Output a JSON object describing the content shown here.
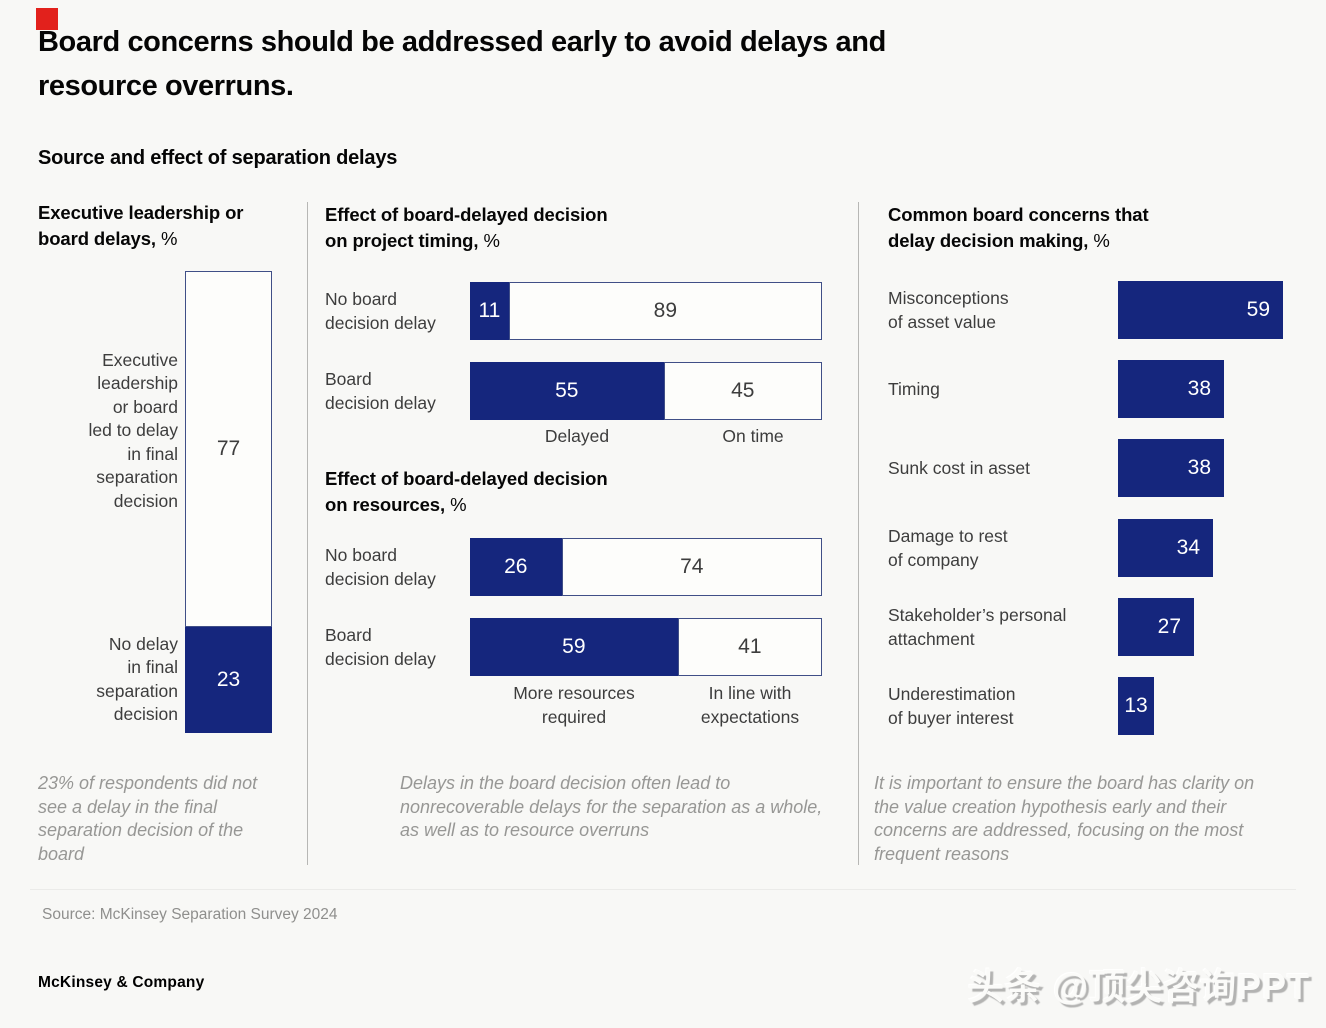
{
  "header": {
    "title": "Board concerns should be addressed early to avoid delays and\nresource overruns.",
    "subtitle": "Source and effect of separation delays"
  },
  "footer": {
    "source": "Source: McKinsey Separation Survey 2024",
    "brand": "McKinsey & Company",
    "watermark": "头条 @顶尖咨询PPT"
  },
  "colors": {
    "accent_blue": "#15267D",
    "marker_red": "#E2211C",
    "background": "#F8F8F6"
  },
  "chart_data": [
    {
      "id": "executive-delays",
      "type": "bar",
      "variant": "stacked-vertical",
      "title": "Executive leadership or board delays,",
      "unit": "%",
      "ylim": [
        0,
        100
      ],
      "segments": [
        {
          "label": "Executive\nleadership\nor board\nled to delay\nin final\nseparation\ndecision",
          "value": 77,
          "fill": "outline"
        },
        {
          "label": "No delay\nin final\nseparation\ndecision",
          "value": 23,
          "fill": "solid"
        }
      ],
      "footnote": "23% of respondents did not see a delay in the final separation decision of the board"
    },
    {
      "id": "timing-effect",
      "type": "bar",
      "variant": "stacked-horizontal-100",
      "title": "Effect of board-delayed decision on project timing,",
      "unit": "%",
      "rows": [
        {
          "label": "No board\ndecision delay",
          "values": [
            11,
            89
          ]
        },
        {
          "label": "Board\ndecision delay",
          "values": [
            55,
            45
          ]
        }
      ],
      "legend": [
        "Delayed",
        "On time"
      ]
    },
    {
      "id": "resources-effect",
      "type": "bar",
      "variant": "stacked-horizontal-100",
      "title": "Effect of board-delayed decision on resources,",
      "unit": "%",
      "rows": [
        {
          "label": "No board\ndecision delay",
          "values": [
            26,
            74
          ]
        },
        {
          "label": "Board\ndecision delay",
          "values": [
            59,
            41
          ]
        }
      ],
      "legend": [
        "More resources\nrequired",
        "In line with\nexpectations"
      ],
      "footnote": "Delays in the board decision often lead to nonrecoverable delays for the separation as a whole, as well as to resource overruns"
    },
    {
      "id": "board-concerns",
      "type": "bar",
      "variant": "horizontal",
      "title": "Common board concerns that delay decision making,",
      "unit": "%",
      "xlim": [
        0,
        60
      ],
      "categories": [
        "Misconceptions\nof asset value",
        "Timing",
        "Sunk cost in asset",
        "Damage to rest\nof company",
        "Stakeholder’s personal\nattachment",
        "Underestimation\nof buyer interest"
      ],
      "values": [
        59,
        38,
        38,
        34,
        27,
        13
      ],
      "footnote": "It is important to ensure the board has clarity on the value creation hypothesis early and their concerns are addressed, focusing on the most frequent reasons"
    }
  ]
}
